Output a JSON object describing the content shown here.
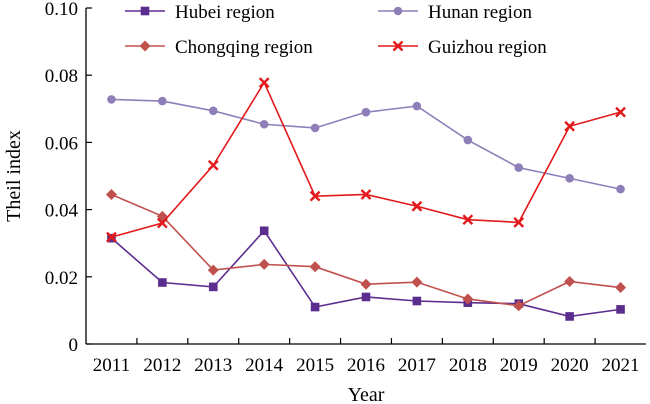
{
  "chart_data": {
    "type": "line",
    "title": "",
    "xlabel": "Year",
    "ylabel": "Theil index",
    "ylim": [
      0,
      0.1
    ],
    "yticks": [
      "0",
      "0.02",
      "0.04",
      "0.06",
      "0.08",
      "0.10"
    ],
    "categories": [
      "2011",
      "2012",
      "2013",
      "2014",
      "2015",
      "2016",
      "2017",
      "2018",
      "2019",
      "2020",
      "2021"
    ],
    "legend_position": "top",
    "series": [
      {
        "name": "Hubei region",
        "color": "#5b2d8e",
        "marker": "square",
        "values": [
          0.0315,
          0.0183,
          0.017,
          0.0337,
          0.011,
          0.014,
          0.0128,
          0.0123,
          0.012,
          0.0082,
          0.0103
        ]
      },
      {
        "name": "Hunan region",
        "color": "#8f7fb8",
        "marker": "circle",
        "values": [
          0.0728,
          0.0723,
          0.0694,
          0.0654,
          0.0643,
          0.069,
          0.0708,
          0.0607,
          0.0525,
          0.0493,
          0.0461
        ]
      },
      {
        "name": "Chongqing region",
        "color": "#c0504d",
        "marker": "diamond",
        "values": [
          0.0445,
          0.038,
          0.022,
          0.0237,
          0.023,
          0.0178,
          0.0184,
          0.0134,
          0.0114,
          0.0186,
          0.0168
        ]
      },
      {
        "name": "Guizhou region",
        "color": "#e3191b",
        "marker": "x",
        "values": [
          0.0318,
          0.036,
          0.0532,
          0.0778,
          0.044,
          0.0445,
          0.041,
          0.037,
          0.0362,
          0.0648,
          0.069
        ]
      }
    ]
  }
}
